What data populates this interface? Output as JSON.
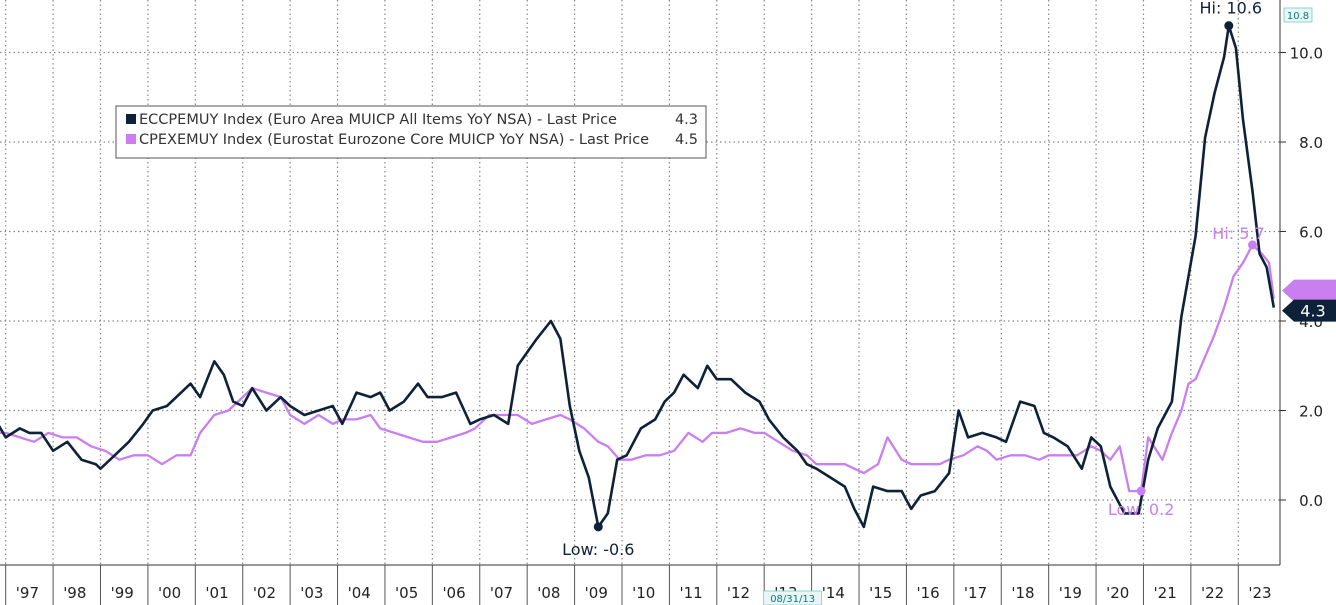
{
  "chart_data": {
    "type": "line",
    "x_range": [
      1996.67,
      2023.75
    ],
    "ylim": [
      -1.2,
      11.2
    ],
    "grid": true,
    "legend_placement": "top-left",
    "x_tick_labels": [
      {
        "x": 1997,
        "label": "'97"
      },
      {
        "x": 1998,
        "label": "'98"
      },
      {
        "x": 1999,
        "label": "'99"
      },
      {
        "x": 2000,
        "label": "'00"
      },
      {
        "x": 2001,
        "label": "'01"
      },
      {
        "x": 2002,
        "label": "'02"
      },
      {
        "x": 2003,
        "label": "'03"
      },
      {
        "x": 2004,
        "label": "'04"
      },
      {
        "x": 2005,
        "label": "'05"
      },
      {
        "x": 2006,
        "label": "'06"
      },
      {
        "x": 2007,
        "label": "'07"
      },
      {
        "x": 2008,
        "label": "'08"
      },
      {
        "x": 2009,
        "label": "'09"
      },
      {
        "x": 2010,
        "label": "'10"
      },
      {
        "x": 2011,
        "label": "'11"
      },
      {
        "x": 2012,
        "label": "'12"
      },
      {
        "x": 2013,
        "label": "'13"
      },
      {
        "x": 2014,
        "label": "'14"
      },
      {
        "x": 2015,
        "label": "'15"
      },
      {
        "x": 2016,
        "label": "'16"
      },
      {
        "x": 2017,
        "label": "'17"
      },
      {
        "x": 2018,
        "label": "'18"
      },
      {
        "x": 2019,
        "label": "'19"
      },
      {
        "x": 2020,
        "label": "'20"
      },
      {
        "x": 2021,
        "label": "'21"
      },
      {
        "x": 2022,
        "label": "'22"
      },
      {
        "x": 2023,
        "label": "'23"
      }
    ],
    "y_ticks": [
      0,
      2,
      4,
      6,
      8,
      10
    ],
    "y_tick_labels": [
      "0.0",
      "2.0",
      "4.0",
      "6.0",
      "8.0",
      "10.0"
    ],
    "y_axis_max_label": "10.8",
    "cursor_date_label": "08/31/13",
    "series": [
      {
        "name": "ECCPEMUY Index (Euro Area MUICP All Items YoY NSA) - Last Price",
        "last_value": "4.3",
        "color": "#0d2238",
        "points": [
          [
            1996.67,
            2.0
          ],
          [
            1997.0,
            1.4
          ],
          [
            1997.3,
            1.6
          ],
          [
            1997.5,
            1.5
          ],
          [
            1997.75,
            1.5
          ],
          [
            1998.0,
            1.1
          ],
          [
            1998.3,
            1.3
          ],
          [
            1998.6,
            0.9
          ],
          [
            1998.9,
            0.8
          ],
          [
            1999.0,
            0.7
          ],
          [
            1999.3,
            1.0
          ],
          [
            1999.6,
            1.3
          ],
          [
            1999.9,
            1.7
          ],
          [
            2000.1,
            2.0
          ],
          [
            2000.4,
            2.1
          ],
          [
            2000.7,
            2.4
          ],
          [
            2000.9,
            2.6
          ],
          [
            2001.1,
            2.3
          ],
          [
            2001.4,
            3.1
          ],
          [
            2001.6,
            2.8
          ],
          [
            2001.8,
            2.2
          ],
          [
            2002.0,
            2.1
          ],
          [
            2002.2,
            2.5
          ],
          [
            2002.5,
            2.0
          ],
          [
            2002.8,
            2.3
          ],
          [
            2003.0,
            2.1
          ],
          [
            2003.3,
            1.9
          ],
          [
            2003.6,
            2.0
          ],
          [
            2003.9,
            2.1
          ],
          [
            2004.1,
            1.7
          ],
          [
            2004.4,
            2.4
          ],
          [
            2004.7,
            2.3
          ],
          [
            2004.9,
            2.4
          ],
          [
            2005.1,
            2.0
          ],
          [
            2005.4,
            2.2
          ],
          [
            2005.7,
            2.6
          ],
          [
            2005.9,
            2.3
          ],
          [
            2006.2,
            2.3
          ],
          [
            2006.5,
            2.4
          ],
          [
            2006.8,
            1.7
          ],
          [
            2007.0,
            1.8
          ],
          [
            2007.3,
            1.9
          ],
          [
            2007.6,
            1.7
          ],
          [
            2007.8,
            3.0
          ],
          [
            2008.0,
            3.3
          ],
          [
            2008.2,
            3.6
          ],
          [
            2008.5,
            4.0
          ],
          [
            2008.7,
            3.6
          ],
          [
            2008.9,
            2.1
          ],
          [
            2009.1,
            1.1
          ],
          [
            2009.3,
            0.5
          ],
          [
            2009.5,
            -0.6
          ],
          [
            2009.7,
            -0.3
          ],
          [
            2009.9,
            0.9
          ],
          [
            2010.1,
            1.0
          ],
          [
            2010.4,
            1.6
          ],
          [
            2010.7,
            1.8
          ],
          [
            2010.9,
            2.2
          ],
          [
            2011.1,
            2.4
          ],
          [
            2011.3,
            2.8
          ],
          [
            2011.6,
            2.5
          ],
          [
            2011.8,
            3.0
          ],
          [
            2012.0,
            2.7
          ],
          [
            2012.3,
            2.7
          ],
          [
            2012.6,
            2.4
          ],
          [
            2012.9,
            2.2
          ],
          [
            2013.1,
            1.8
          ],
          [
            2013.4,
            1.4
          ],
          [
            2013.7,
            1.1
          ],
          [
            2013.9,
            0.8
          ],
          [
            2014.1,
            0.7
          ],
          [
            2014.4,
            0.5
          ],
          [
            2014.7,
            0.3
          ],
          [
            2014.9,
            -0.2
          ],
          [
            2015.1,
            -0.6
          ],
          [
            2015.3,
            0.3
          ],
          [
            2015.6,
            0.2
          ],
          [
            2015.9,
            0.2
          ],
          [
            2016.1,
            -0.2
          ],
          [
            2016.3,
            0.1
          ],
          [
            2016.6,
            0.2
          ],
          [
            2016.9,
            0.6
          ],
          [
            2017.1,
            2.0
          ],
          [
            2017.3,
            1.4
          ],
          [
            2017.6,
            1.5
          ],
          [
            2017.9,
            1.4
          ],
          [
            2018.1,
            1.3
          ],
          [
            2018.4,
            2.2
          ],
          [
            2018.7,
            2.1
          ],
          [
            2018.9,
            1.5
          ],
          [
            2019.1,
            1.4
          ],
          [
            2019.4,
            1.2
          ],
          [
            2019.7,
            0.7
          ],
          [
            2019.9,
            1.4
          ],
          [
            2020.1,
            1.2
          ],
          [
            2020.3,
            0.3
          ],
          [
            2020.6,
            -0.3
          ],
          [
            2020.9,
            -0.3
          ],
          [
            2021.1,
            0.9
          ],
          [
            2021.3,
            1.6
          ],
          [
            2021.6,
            2.2
          ],
          [
            2021.8,
            4.1
          ],
          [
            2021.95,
            5.0
          ],
          [
            2022.1,
            5.9
          ],
          [
            2022.3,
            8.1
          ],
          [
            2022.5,
            9.1
          ],
          [
            2022.7,
            9.9
          ],
          [
            2022.8,
            10.6
          ],
          [
            2022.95,
            10.1
          ],
          [
            2023.1,
            8.5
          ],
          [
            2023.3,
            6.9
          ],
          [
            2023.45,
            5.5
          ],
          [
            2023.6,
            5.2
          ],
          [
            2023.75,
            4.3
          ]
        ]
      },
      {
        "name": "CPEXEMUY Index (Eurostat Eurozone Core MUICP YoY NSA) - Last Price",
        "last_value": "4.5",
        "color": "#c97ff0",
        "points": [
          [
            1996.67,
            1.5
          ],
          [
            1997.0,
            1.5
          ],
          [
            1997.3,
            1.4
          ],
          [
            1997.6,
            1.3
          ],
          [
            1997.9,
            1.5
          ],
          [
            1998.2,
            1.4
          ],
          [
            1998.5,
            1.4
          ],
          [
            1998.8,
            1.2
          ],
          [
            1999.1,
            1.1
          ],
          [
            1999.4,
            0.9
          ],
          [
            1999.7,
            1.0
          ],
          [
            2000.0,
            1.0
          ],
          [
            2000.3,
            0.8
          ],
          [
            2000.6,
            1.0
          ],
          [
            2000.9,
            1.0
          ],
          [
            2001.1,
            1.5
          ],
          [
            2001.4,
            1.9
          ],
          [
            2001.7,
            2.0
          ],
          [
            2001.9,
            2.2
          ],
          [
            2002.2,
            2.5
          ],
          [
            2002.5,
            2.4
          ],
          [
            2002.8,
            2.3
          ],
          [
            2003.0,
            1.9
          ],
          [
            2003.3,
            1.7
          ],
          [
            2003.6,
            1.9
          ],
          [
            2003.9,
            1.7
          ],
          [
            2004.1,
            1.8
          ],
          [
            2004.4,
            1.8
          ],
          [
            2004.7,
            1.9
          ],
          [
            2004.9,
            1.6
          ],
          [
            2005.2,
            1.5
          ],
          [
            2005.5,
            1.4
          ],
          [
            2005.8,
            1.3
          ],
          [
            2006.1,
            1.3
          ],
          [
            2006.4,
            1.4
          ],
          [
            2006.7,
            1.5
          ],
          [
            2006.9,
            1.6
          ],
          [
            2007.2,
            1.9
          ],
          [
            2007.5,
            1.9
          ],
          [
            2007.8,
            1.9
          ],
          [
            2008.1,
            1.7
          ],
          [
            2008.4,
            1.8
          ],
          [
            2008.7,
            1.9
          ],
          [
            2008.9,
            1.8
          ],
          [
            2009.2,
            1.6
          ],
          [
            2009.5,
            1.3
          ],
          [
            2009.7,
            1.2
          ],
          [
            2009.95,
            0.9
          ],
          [
            2010.2,
            0.9
          ],
          [
            2010.5,
            1.0
          ],
          [
            2010.8,
            1.0
          ],
          [
            2011.1,
            1.1
          ],
          [
            2011.4,
            1.5
          ],
          [
            2011.7,
            1.3
          ],
          [
            2011.9,
            1.5
          ],
          [
            2012.2,
            1.5
          ],
          [
            2012.5,
            1.6
          ],
          [
            2012.8,
            1.5
          ],
          [
            2013.0,
            1.5
          ],
          [
            2013.3,
            1.3
          ],
          [
            2013.6,
            1.1
          ],
          [
            2013.9,
            1.0
          ],
          [
            2014.1,
            0.8
          ],
          [
            2014.4,
            0.8
          ],
          [
            2014.7,
            0.8
          ],
          [
            2014.9,
            0.7
          ],
          [
            2015.1,
            0.6
          ],
          [
            2015.4,
            0.8
          ],
          [
            2015.6,
            1.4
          ],
          [
            2015.9,
            0.9
          ],
          [
            2016.1,
            0.8
          ],
          [
            2016.4,
            0.8
          ],
          [
            2016.7,
            0.8
          ],
          [
            2016.9,
            0.9
          ],
          [
            2017.2,
            1.0
          ],
          [
            2017.5,
            1.2
          ],
          [
            2017.7,
            1.1
          ],
          [
            2017.9,
            0.9
          ],
          [
            2018.2,
            1.0
          ],
          [
            2018.5,
            1.0
          ],
          [
            2018.8,
            0.9
          ],
          [
            2019.0,
            1.0
          ],
          [
            2019.3,
            1.0
          ],
          [
            2019.6,
            1.0
          ],
          [
            2019.9,
            1.2
          ],
          [
            2020.1,
            1.1
          ],
          [
            2020.3,
            0.9
          ],
          [
            2020.5,
            1.2
          ],
          [
            2020.7,
            0.2
          ],
          [
            2020.95,
            0.2
          ],
          [
            2021.1,
            1.4
          ],
          [
            2021.4,
            0.9
          ],
          [
            2021.6,
            1.5
          ],
          [
            2021.8,
            2.0
          ],
          [
            2021.95,
            2.6
          ],
          [
            2022.1,
            2.7
          ],
          [
            2022.3,
            3.2
          ],
          [
            2022.5,
            3.7
          ],
          [
            2022.7,
            4.3
          ],
          [
            2022.9,
            5.0
          ],
          [
            2023.1,
            5.3
          ],
          [
            2023.3,
            5.7
          ],
          [
            2023.5,
            5.5
          ],
          [
            2023.65,
            5.3
          ],
          [
            2023.75,
            4.5
          ]
        ]
      }
    ],
    "annotations": [
      {
        "series": 0,
        "x": 2022.8,
        "y": 10.6,
        "label": "Hi: 10.6"
      },
      {
        "series": 0,
        "x": 2009.5,
        "y": -0.6,
        "label": "Low: -0.6"
      },
      {
        "series": 1,
        "x": 2023.3,
        "y": 5.7,
        "label": "Hi: 5.7"
      },
      {
        "series": 1,
        "x": 2020.95,
        "y": 0.2,
        "label": "Low: 0.2"
      }
    ]
  }
}
